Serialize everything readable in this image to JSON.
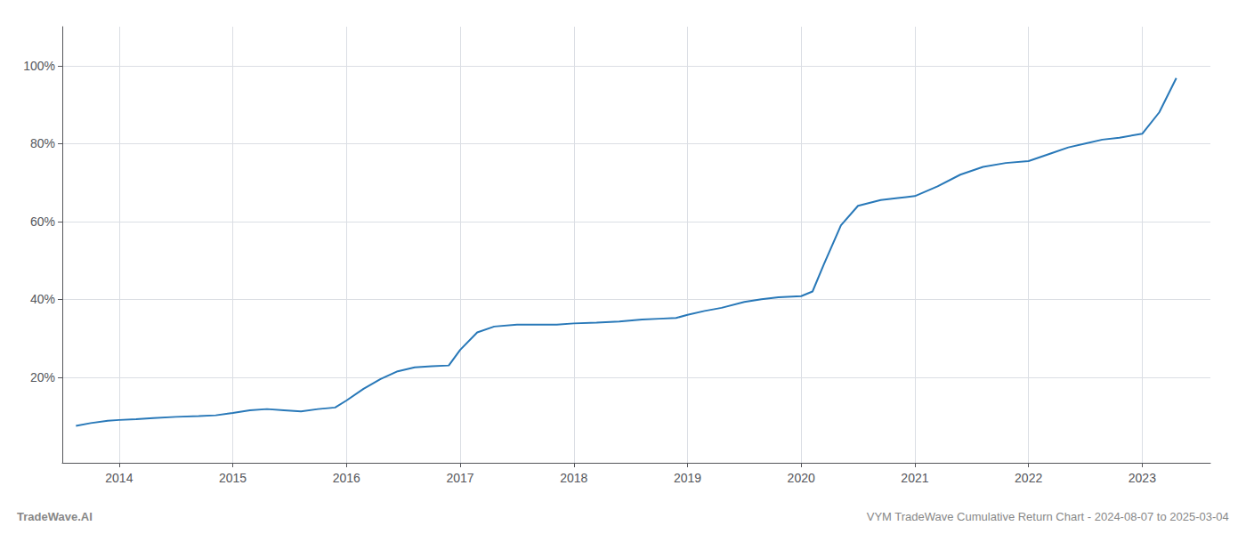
{
  "chart_data": {
    "type": "line",
    "title": "VYM TradeWave Cumulative Return Chart - 2024-08-07 to 2025-03-04",
    "annotations": [
      "TradeWave.AI"
    ],
    "color": "#2878b8",
    "grid": true,
    "x": [
      2013.62,
      2013.75,
      2013.9,
      2014.0,
      2014.15,
      2014.3,
      2014.5,
      2014.7,
      2014.85,
      2015.0,
      2015.15,
      2015.3,
      2015.45,
      2015.6,
      2015.75,
      2015.9,
      2016.0,
      2016.15,
      2016.3,
      2016.45,
      2016.6,
      2016.75,
      2016.9,
      2017.0,
      2017.15,
      2017.3,
      2017.5,
      2017.7,
      2017.85,
      2018.0,
      2018.2,
      2018.4,
      2018.6,
      2018.75,
      2018.9,
      2019.0,
      2019.15,
      2019.3,
      2019.5,
      2019.65,
      2019.8,
      2020.0,
      2020.1,
      2020.2,
      2020.35,
      2020.5,
      2020.7,
      2020.85,
      2021.0,
      2021.2,
      2021.4,
      2021.6,
      2021.8,
      2022.0,
      2022.2,
      2022.35,
      2022.5,
      2022.65,
      2022.8,
      2023.0,
      2023.15,
      2023.3
    ],
    "values": [
      0.075,
      0.082,
      0.088,
      0.09,
      0.092,
      0.095,
      0.098,
      0.1,
      0.102,
      0.108,
      0.115,
      0.118,
      0.115,
      0.112,
      0.118,
      0.122,
      0.14,
      0.17,
      0.195,
      0.215,
      0.225,
      0.228,
      0.23,
      0.27,
      0.315,
      0.33,
      0.335,
      0.335,
      0.335,
      0.338,
      0.34,
      0.343,
      0.348,
      0.35,
      0.352,
      0.36,
      0.37,
      0.378,
      0.393,
      0.4,
      0.405,
      0.408,
      0.42,
      0.49,
      0.59,
      0.64,
      0.655,
      0.66,
      0.665,
      0.69,
      0.72,
      0.74,
      0.75,
      0.755,
      0.775,
      0.79,
      0.8,
      0.81,
      0.815,
      0.825,
      0.88,
      0.968
    ],
    "xlim": [
      2013.5,
      2023.6
    ],
    "xticks": [
      2014,
      2015,
      2016,
      2017,
      2018,
      2019,
      2020,
      2021,
      2022,
      2023
    ],
    "ylim": [
      -0.02,
      1.1
    ],
    "yticks": [
      {
        "value": 0.2,
        "label": "20%"
      },
      {
        "value": 0.4,
        "label": "40%"
      },
      {
        "value": 0.6,
        "label": "60%"
      },
      {
        "value": 0.8,
        "label": "80%"
      },
      {
        "value": 1.0,
        "label": "100%"
      }
    ]
  }
}
